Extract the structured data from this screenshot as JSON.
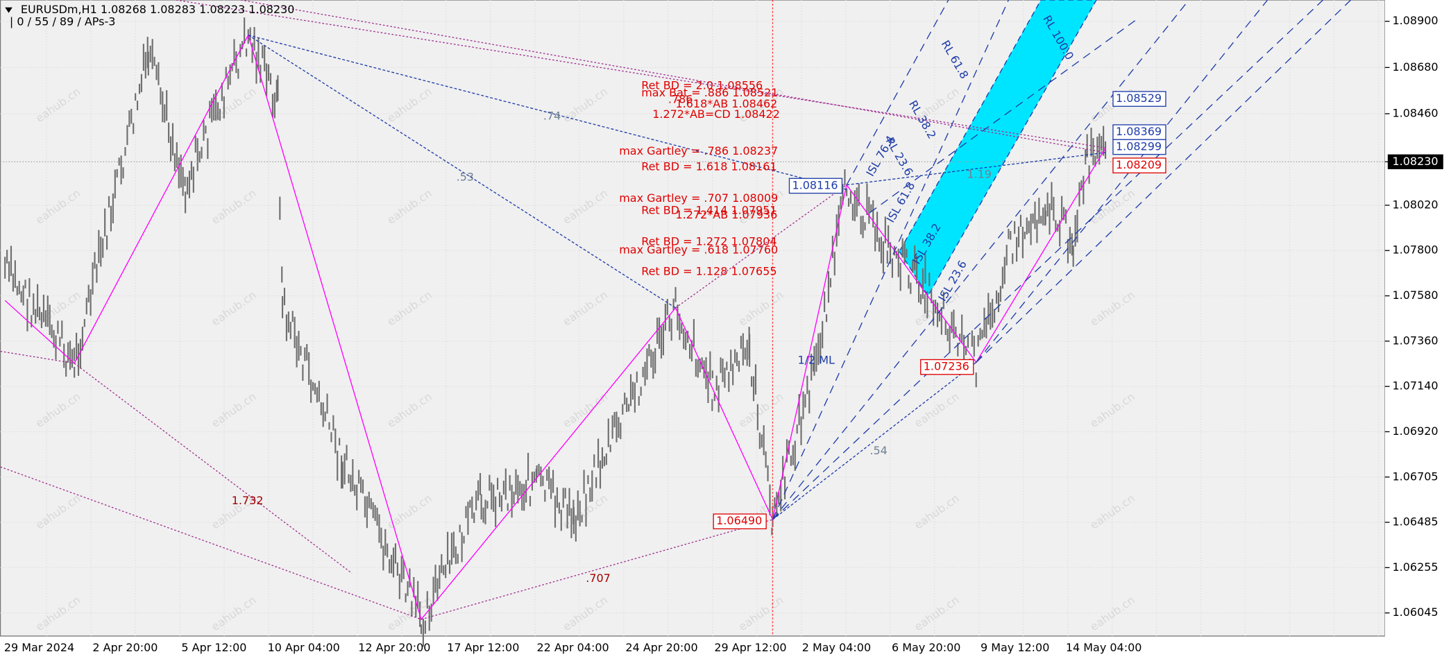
{
  "header": {
    "symbol": "EURUSDm,H1  1.08268 1.08283 1.08223 1.08230",
    "indicators": "| 0 / 55 / 89 / APs-3"
  },
  "price_axis": [
    "1.08900",
    "1.08680",
    "1.08460",
    "1.08230",
    "1.08020",
    "1.07800",
    "1.07580",
    "1.07360",
    "1.07140",
    "1.06920",
    "1.06705",
    "1.06485",
    "1.06255",
    "1.06045"
  ],
  "time_axis": [
    "29 Mar 2024",
    "2 Apr 20:00",
    "5 Apr 12:00",
    "10 Apr 04:00",
    "12 Apr 20:00",
    "17 Apr 12:00",
    "22 Apr 04:00",
    "24 Apr 20:00",
    "29 Apr 12:00",
    "2 May 04:00",
    "6 May 20:00",
    "9 May 12:00",
    "14 May 04:00"
  ],
  "levels": [
    "Ret BD = 2.0  1.08556",
    "max Bat = .886  1.08521",
    "1.618*AB  1.08462",
    "1.272*AB=CD  1.08422",
    ".786",
    "max Gartley = .786  1.08237",
    "Ret BD = 1.618  1.08161",
    "max Gartley = .707  1.08009",
    "Ret BD = 1.414  1.07951",
    "1.272*AB  1.07936",
    "Ret BD = 1.272  1.07804",
    "max Gartley = .618  1.07760",
    "Ret BD = 1.128  1.07655"
  ],
  "boxes": [
    "1.08116",
    "1.06490",
    "1.07236",
    "1.08529",
    "1.08369",
    "1.08299",
    "1.08209"
  ],
  "ratios": [
    "1.732",
    ".707",
    ".74",
    ".53",
    ".54",
    "1.19"
  ],
  "fork_labels": [
    "RL 100.0",
    "RL 61.8",
    "RL 38.2",
    "RL 23.6",
    "ISL 76.4",
    "ISL 61.8",
    "ISL 38.2",
    "ISL 23.6",
    "1/2 ML"
  ],
  "watermark": "eahub.cn"
}
